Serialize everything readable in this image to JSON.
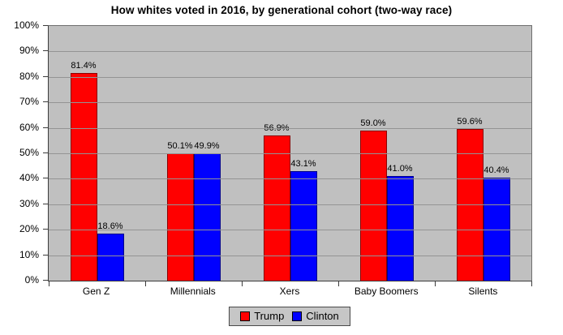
{
  "chart_data": {
    "type": "bar",
    "title": "How whites voted in 2016, by generational cohort (two-way race)",
    "categories": [
      "Gen Z",
      "Millennials",
      "Xers",
      "Baby Boomers",
      "Silents"
    ],
    "series": [
      {
        "name": "Trump",
        "color": "#ff0000",
        "values": [
          81.4,
          50.1,
          56.9,
          59.0,
          59.6
        ],
        "labels": [
          "81.4%",
          "50.1%",
          "56.9%",
          "59.0%",
          "59.6%"
        ]
      },
      {
        "name": "Clinton",
        "color": "#0000ff",
        "values": [
          18.6,
          49.9,
          43.1,
          41.0,
          40.4
        ],
        "labels": [
          "18.6%",
          "49.9%",
          "43.1%",
          "41.0%",
          "40.4%"
        ]
      }
    ],
    "xlabel": "",
    "ylabel": "",
    "ylim": [
      0,
      100
    ],
    "ytick_step": 10,
    "ytick_labels": [
      "100%",
      "90%",
      "80%",
      "70%",
      "60%",
      "50%",
      "40%",
      "30%",
      "20%",
      "10%",
      "0%"
    ],
    "grid": true,
    "legend_position": "bottom-center",
    "plot_bg_color": "#c0c0c0",
    "gridline_color": "#949494",
    "bar_border_color": "rgba(0,0,0,0.45)"
  }
}
